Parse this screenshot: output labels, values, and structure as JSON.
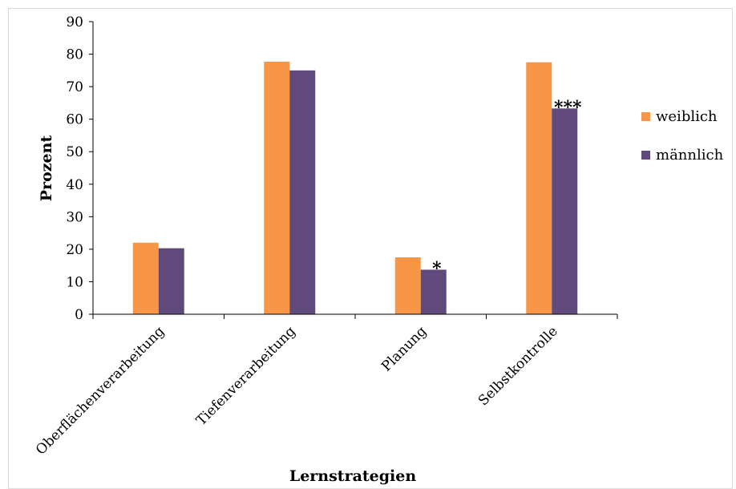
{
  "chart_data": {
    "type": "bar",
    "title": "",
    "xlabel": "Lernstrategien",
    "ylabel": "Prozent",
    "ylim": [
      0,
      90
    ],
    "yticks": [
      "0",
      "10",
      "20",
      "30",
      "40",
      "50",
      "60",
      "70",
      "80",
      "90"
    ],
    "grid": false,
    "legend_position": "right",
    "categories": [
      "Oberflächenverarbeitung",
      "Tiefenverarbeitung",
      "Planung",
      "Selbstkontrolle"
    ],
    "series": [
      {
        "name": "weiblich",
        "color": "#F79646",
        "values": [
          22,
          77.7,
          17.5,
          77.5
        ]
      },
      {
        "name": "männlich",
        "color": "#604A7B",
        "values": [
          20.3,
          75,
          13.7,
          63.3
        ]
      }
    ],
    "annotations": [
      {
        "category": "Planung",
        "series": "männlich",
        "text": "*"
      },
      {
        "category": "Selbstkontrolle",
        "series": "männlich",
        "text": "***"
      }
    ]
  }
}
